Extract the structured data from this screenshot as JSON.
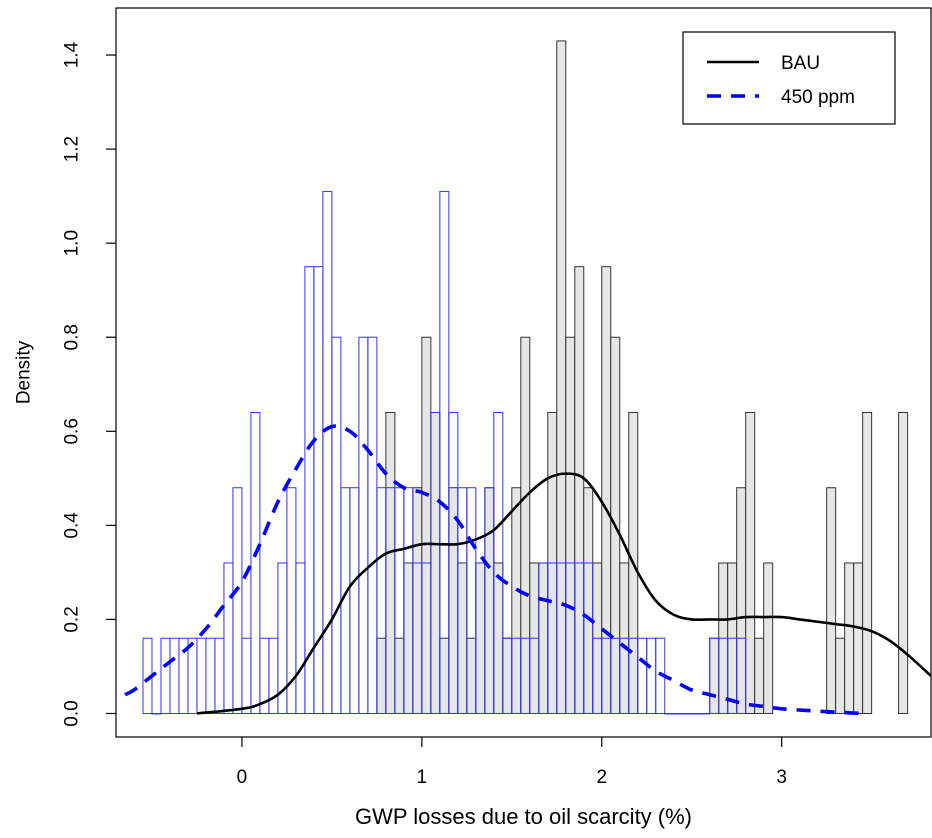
{
  "chart_data": {
    "type": "histogram",
    "xlabel": "GWP losses due to oil scarcity (%)",
    "ylabel": "Density",
    "xlim": [
      -0.7,
      3.83
    ],
    "ylim": [
      -0.05,
      1.5
    ],
    "xticks": [
      "0",
      "1",
      "2",
      "3"
    ],
    "yticks": [
      "0.0",
      "0.2",
      "0.4",
      "0.6",
      "0.8",
      "1.0",
      "1.2",
      "1.4"
    ],
    "bin_width": 0.05,
    "legend": {
      "position": "top-right",
      "entries": [
        {
          "label": "BAU",
          "color": "#000000",
          "dash": "solid"
        },
        {
          "label": "450 ppm",
          "color": "#0000ff",
          "dash": "dashed"
        }
      ]
    },
    "series": [
      {
        "name": "BAU",
        "histogram": {
          "fill": "#e6e6e6",
          "stroke": "#333333",
          "bins": [
            {
              "x": 0.75,
              "y": 0.16
            },
            {
              "x": 0.8,
              "y": 0.64
            },
            {
              "x": 0.85,
              "y": 0.16
            },
            {
              "x": 0.9,
              "y": 0.32
            },
            {
              "x": 0.95,
              "y": 0.48
            },
            {
              "x": 1.0,
              "y": 0.8
            },
            {
              "x": 1.05,
              "y": 0.64
            },
            {
              "x": 1.1,
              "y": 0.16
            },
            {
              "x": 1.15,
              "y": 0.48
            },
            {
              "x": 1.2,
              "y": 0.32
            },
            {
              "x": 1.25,
              "y": 0.16
            },
            {
              "x": 1.3,
              "y": 0.32
            },
            {
              "x": 1.35,
              "y": 0.48
            },
            {
              "x": 1.4,
              "y": 0.32
            },
            {
              "x": 1.45,
              "y": 0.16
            },
            {
              "x": 1.5,
              "y": 0.48
            },
            {
              "x": 1.55,
              "y": 0.8
            },
            {
              "x": 1.6,
              "y": 0.32
            },
            {
              "x": 1.65,
              "y": 0.32
            },
            {
              "x": 1.7,
              "y": 0.64
            },
            {
              "x": 1.75,
              "y": 1.43
            },
            {
              "x": 1.8,
              "y": 0.8
            },
            {
              "x": 1.85,
              "y": 0.95
            },
            {
              "x": 1.9,
              "y": 0.48
            },
            {
              "x": 1.95,
              "y": 0.32
            },
            {
              "x": 2.0,
              "y": 0.95
            },
            {
              "x": 2.05,
              "y": 0.8
            },
            {
              "x": 2.1,
              "y": 0.32
            },
            {
              "x": 2.15,
              "y": 0.64
            },
            {
              "x": 2.6,
              "y": 0.16
            },
            {
              "x": 2.65,
              "y": 0.32
            },
            {
              "x": 2.7,
              "y": 0.32
            },
            {
              "x": 2.75,
              "y": 0.48
            },
            {
              "x": 2.8,
              "y": 0.64
            },
            {
              "x": 2.85,
              "y": 0.16
            },
            {
              "x": 2.9,
              "y": 0.32
            },
            {
              "x": 3.25,
              "y": 0.48
            },
            {
              "x": 3.3,
              "y": 0.16
            },
            {
              "x": 3.35,
              "y": 0.32
            },
            {
              "x": 3.4,
              "y": 0.32
            },
            {
              "x": 3.45,
              "y": 0.64
            },
            {
              "x": 3.65,
              "y": 0.64
            }
          ]
        },
        "density": {
          "x": [
            -0.25,
            0.0,
            0.1,
            0.2,
            0.3,
            0.4,
            0.5,
            0.6,
            0.7,
            0.8,
            0.9,
            1.0,
            1.1,
            1.2,
            1.3,
            1.4,
            1.5,
            1.6,
            1.7,
            1.8,
            1.9,
            2.0,
            2.1,
            2.2,
            2.3,
            2.4,
            2.5,
            2.6,
            2.7,
            2.8,
            2.9,
            3.0,
            3.1,
            3.2,
            3.3,
            3.4,
            3.5,
            3.6,
            3.7,
            3.83
          ],
          "y": [
            0.0,
            0.01,
            0.02,
            0.04,
            0.08,
            0.14,
            0.2,
            0.27,
            0.31,
            0.34,
            0.35,
            0.36,
            0.36,
            0.36,
            0.37,
            0.39,
            0.43,
            0.47,
            0.5,
            0.51,
            0.5,
            0.45,
            0.38,
            0.3,
            0.24,
            0.21,
            0.2,
            0.2,
            0.2,
            0.205,
            0.205,
            0.205,
            0.2,
            0.195,
            0.19,
            0.185,
            0.175,
            0.155,
            0.125,
            0.08
          ]
        }
      },
      {
        "name": "450 ppm",
        "histogram": {
          "fill": "none",
          "stroke": "#3333ff",
          "bins": [
            {
              "x": -0.55,
              "y": 0.16
            },
            {
              "x": -0.5,
              "y": 0.0
            },
            {
              "x": -0.45,
              "y": 0.16
            },
            {
              "x": -0.4,
              "y": 0.16
            },
            {
              "x": -0.35,
              "y": 0.16
            },
            {
              "x": -0.3,
              "y": 0.16
            },
            {
              "x": -0.25,
              "y": 0.16
            },
            {
              "x": -0.2,
              "y": 0.16
            },
            {
              "x": -0.15,
              "y": 0.16
            },
            {
              "x": -0.1,
              "y": 0.32
            },
            {
              "x": -0.05,
              "y": 0.48
            },
            {
              "x": 0.0,
              "y": 0.16
            },
            {
              "x": 0.05,
              "y": 0.64
            },
            {
              "x": 0.1,
              "y": 0.16
            },
            {
              "x": 0.15,
              "y": 0.16
            },
            {
              "x": 0.2,
              "y": 0.32
            },
            {
              "x": 0.25,
              "y": 0.48
            },
            {
              "x": 0.3,
              "y": 0.32
            },
            {
              "x": 0.35,
              "y": 0.95
            },
            {
              "x": 0.4,
              "y": 0.95
            },
            {
              "x": 0.45,
              "y": 1.11
            },
            {
              "x": 0.5,
              "y": 0.8
            },
            {
              "x": 0.55,
              "y": 0.48
            },
            {
              "x": 0.6,
              "y": 0.48
            },
            {
              "x": 0.65,
              "y": 0.8
            },
            {
              "x": 0.7,
              "y": 0.8
            },
            {
              "x": 0.75,
              "y": 0.48
            },
            {
              "x": 0.8,
              "y": 0.48
            },
            {
              "x": 0.85,
              "y": 0.48
            },
            {
              "x": 0.9,
              "y": 0.48
            },
            {
              "x": 0.95,
              "y": 0.32
            },
            {
              "x": 1.0,
              "y": 0.32
            },
            {
              "x": 1.05,
              "y": 0.64
            },
            {
              "x": 1.1,
              "y": 1.11
            },
            {
              "x": 1.15,
              "y": 0.64
            },
            {
              "x": 1.2,
              "y": 0.48
            },
            {
              "x": 1.25,
              "y": 0.48
            },
            {
              "x": 1.3,
              "y": 0.32
            },
            {
              "x": 1.35,
              "y": 0.48
            },
            {
              "x": 1.4,
              "y": 0.64
            },
            {
              "x": 1.45,
              "y": 0.16
            },
            {
              "x": 1.5,
              "y": 0.16
            },
            {
              "x": 1.55,
              "y": 0.16
            },
            {
              "x": 1.6,
              "y": 0.16
            },
            {
              "x": 1.65,
              "y": 0.32
            },
            {
              "x": 1.7,
              "y": 0.32
            },
            {
              "x": 1.75,
              "y": 0.32
            },
            {
              "x": 1.8,
              "y": 0.32
            },
            {
              "x": 1.85,
              "y": 0.32
            },
            {
              "x": 1.9,
              "y": 0.32
            },
            {
              "x": 1.95,
              "y": 0.16
            },
            {
              "x": 2.0,
              "y": 0.16
            },
            {
              "x": 2.05,
              "y": 0.16
            },
            {
              "x": 2.1,
              "y": 0.16
            },
            {
              "x": 2.15,
              "y": 0.16
            },
            {
              "x": 2.2,
              "y": 0.16
            },
            {
              "x": 2.25,
              "y": 0.16
            },
            {
              "x": 2.3,
              "y": 0.16
            },
            {
              "x": 2.35,
              "y": 0.0
            },
            {
              "x": 2.4,
              "y": 0.0
            },
            {
              "x": 2.45,
              "y": 0.0
            },
            {
              "x": 2.5,
              "y": 0.0
            },
            {
              "x": 2.55,
              "y": 0.0
            },
            {
              "x": 2.6,
              "y": 0.16
            },
            {
              "x": 2.65,
              "y": 0.16
            },
            {
              "x": 2.7,
              "y": 0.16
            },
            {
              "x": 2.75,
              "y": 0.16
            }
          ]
        },
        "density": {
          "x": [
            -0.65,
            -0.6,
            -0.5,
            -0.4,
            -0.3,
            -0.2,
            -0.1,
            0.0,
            0.1,
            0.2,
            0.3,
            0.4,
            0.5,
            0.6,
            0.7,
            0.8,
            0.9,
            1.0,
            1.1,
            1.2,
            1.3,
            1.4,
            1.5,
            1.6,
            1.7,
            1.8,
            1.9,
            2.0,
            2.1,
            2.2,
            2.3,
            2.4,
            2.5,
            2.6,
            2.7,
            2.8,
            2.9,
            3.0,
            3.2,
            3.45
          ],
          "y": [
            0.04,
            0.05,
            0.08,
            0.11,
            0.14,
            0.18,
            0.23,
            0.28,
            0.36,
            0.45,
            0.52,
            0.58,
            0.61,
            0.6,
            0.56,
            0.51,
            0.48,
            0.47,
            0.45,
            0.41,
            0.35,
            0.3,
            0.27,
            0.25,
            0.24,
            0.23,
            0.21,
            0.18,
            0.15,
            0.12,
            0.09,
            0.07,
            0.05,
            0.04,
            0.03,
            0.02,
            0.015,
            0.01,
            0.005,
            0.0
          ]
        }
      }
    ]
  }
}
